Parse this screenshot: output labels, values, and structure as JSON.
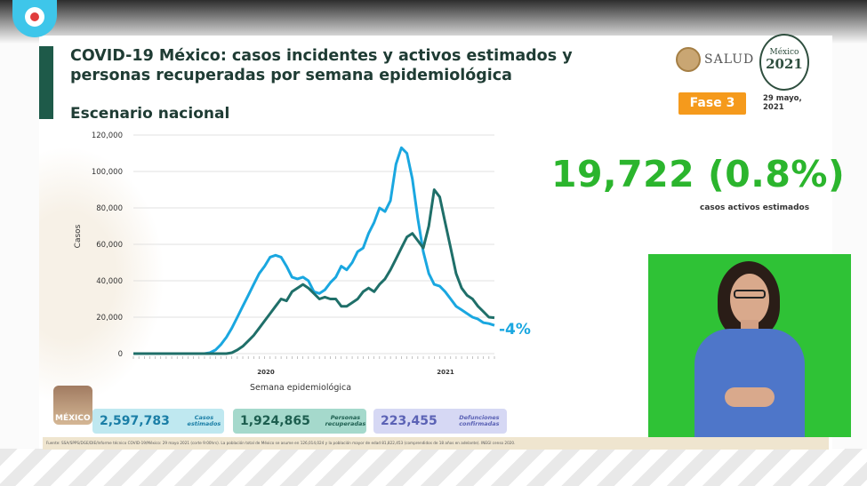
{
  "title": "COVID-19 México: casos incidentes y activos estimados y personas recuperadas por semana epidemiológica",
  "subtitle": "Escenario nacional",
  "header": {
    "salud_label": "SALUD",
    "badge_line1": "México",
    "badge_line2": "2021",
    "fase": "Fase 3",
    "date_line1": "29 mayo,",
    "date_line2": "2021"
  },
  "highlight": {
    "value": "19,722 (0.8%)",
    "caption": "casos activos estimados"
  },
  "stats": {
    "estimados_value": "2,597,783",
    "estimados_label": "Casos estimados",
    "recuperadas_value": "1,924,865",
    "recuperadas_label": "Personas recuperadas",
    "defunciones_value": "223,455",
    "defunciones_label": "Defunciones confirmadas"
  },
  "footnote": "Fuente: SSA/SPPS/DGE/DIE/Informe técnico COVID-19/México: 29 mayo 2021 (corte 9:00hrs). La población total de México se asume en 126,014,024 y la población mayor de edad 81,822,453 (comprendidos de 18 años en adelante). INEGI censo 2020.",
  "logo_left_text": "MÉXICO",
  "colors": {
    "series_light": "#1aa7e0",
    "series_dark": "#1f6f69",
    "highlight": "#2bb52d",
    "fase": "#f59a1c"
  },
  "chart_data": {
    "type": "line",
    "xlabel": "Semana epidemiológica",
    "ylabel": "Casos",
    "ylim": [
      0,
      120000
    ],
    "yticks": [
      "0",
      "20,000",
      "40,000",
      "60,000",
      "80,000",
      "100,000",
      "120,000"
    ],
    "x_group_labels": [
      "2020",
      "2021"
    ],
    "annotation": "-4%",
    "grid": true,
    "legend": "none",
    "series": [
      {
        "values": [
          0,
          0,
          0,
          0,
          0,
          0,
          0,
          0,
          0,
          0,
          0,
          0,
          0,
          0,
          500,
          2000,
          5000,
          9000,
          14000,
          20000,
          26000,
          32000,
          38000,
          44000,
          48000,
          53000,
          54000,
          53000,
          48000,
          42000,
          41000,
          42000,
          40000,
          34000,
          33000,
          35000,
          39000,
          42000,
          48000,
          46000,
          50000,
          56000,
          58000,
          66000,
          72000,
          80000,
          78000,
          84000,
          104000,
          113000,
          110000,
          96000,
          74000,
          56000,
          44000,
          38000,
          37000,
          34000,
          30000,
          26000,
          24000,
          22000,
          20000,
          19000,
          17000,
          16500,
          15500
        ]
      },
      {
        "values": [
          0,
          0,
          0,
          0,
          0,
          0,
          0,
          0,
          0,
          0,
          0,
          0,
          0,
          0,
          0,
          0,
          0,
          0,
          500,
          2000,
          4000,
          7000,
          10000,
          14000,
          18000,
          22000,
          26000,
          30000,
          29000,
          34000,
          36000,
          38000,
          36000,
          33000,
          30000,
          31000,
          30000,
          30000,
          26000,
          26000,
          28000,
          30000,
          34000,
          36000,
          34000,
          38000,
          41000,
          46000,
          52000,
          58000,
          64000,
          66000,
          62000,
          58000,
          70000,
          90000,
          86000,
          72000,
          58000,
          44000,
          36000,
          32000,
          30000,
          26000,
          23000,
          20000,
          19722
        ]
      }
    ]
  }
}
